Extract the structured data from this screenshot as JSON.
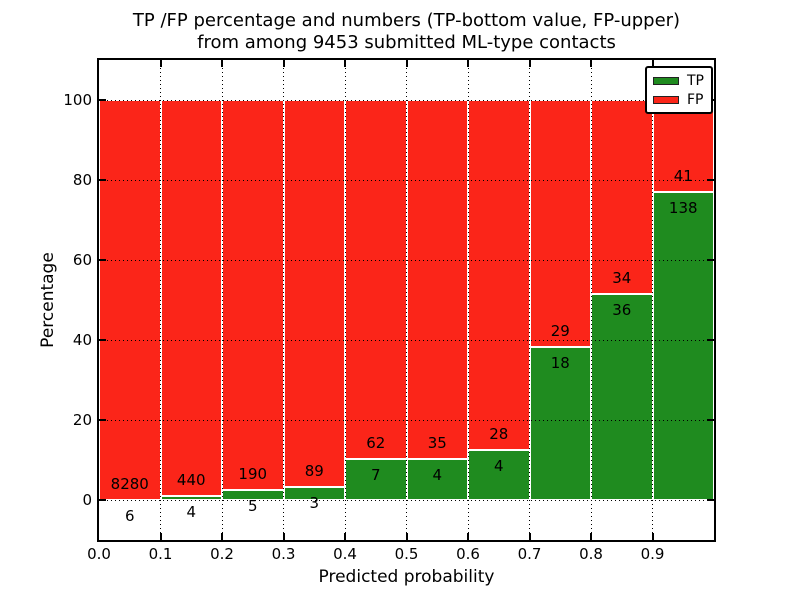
{
  "title": {
    "line1": "TP /FP percentage and numbers (TP-bottom value, FP-upper)",
    "line2": "from among 9453 submitted ML-type contacts"
  },
  "axes": {
    "xlabel": "Predicted probability",
    "ylabel": "Percentage",
    "x_tick_labels": [
      "0.0",
      "0.1",
      "0.2",
      "0.3",
      "0.4",
      "0.5",
      "0.6",
      "0.7",
      "0.8",
      "0.9"
    ],
    "y_tick_values": [
      0,
      20,
      40,
      60,
      80,
      100
    ],
    "xlim": [
      0.0,
      1.0
    ],
    "ylim": [
      -10,
      110
    ],
    "grid": "dotted"
  },
  "legend": {
    "position": "upper right",
    "items": [
      {
        "label": "TP",
        "color": "#1f8b1f"
      },
      {
        "label": "FP",
        "color": "#fb2519"
      }
    ]
  },
  "colors": {
    "tp": "#1f8b1f",
    "fp": "#fb2519",
    "bar_edge": "#ffffff",
    "grid": "#000000"
  },
  "chart_data": {
    "type": "bar",
    "stacked": true,
    "title": "TP /FP percentage and numbers (TP-bottom value, FP-upper) from among 9453 submitted ML-type contacts",
    "xlabel": "Predicted probability",
    "ylabel": "Percentage",
    "bin_width": 0.1,
    "bin_starts": [
      0.0,
      0.1,
      0.2,
      0.3,
      0.4,
      0.5,
      0.6,
      0.7,
      0.8,
      0.9
    ],
    "categories": [
      "0.0-0.1",
      "0.1-0.2",
      "0.2-0.3",
      "0.3-0.4",
      "0.4-0.5",
      "0.5-0.6",
      "0.6-0.7",
      "0.7-0.8",
      "0.8-0.9",
      "0.9-1.0"
    ],
    "series": [
      {
        "name": "TP",
        "color": "#1f8b1f",
        "counts": [
          6,
          4,
          5,
          3,
          7,
          4,
          4,
          18,
          36,
          138
        ],
        "pct": [
          0.07,
          0.9,
          2.56,
          3.26,
          10.14,
          10.26,
          12.5,
          38.3,
          51.43,
          77.09
        ]
      },
      {
        "name": "FP",
        "color": "#fb2519",
        "counts": [
          8280,
          440,
          190,
          89,
          62,
          35,
          28,
          29,
          34,
          41
        ],
        "pct": [
          99.93,
          99.1,
          97.44,
          96.74,
          89.86,
          89.74,
          87.5,
          61.7,
          48.57,
          22.91
        ]
      }
    ],
    "total_contacts": 9453,
    "ylim": [
      -10,
      110
    ],
    "note": "TP count labeled below segment boundary, FP count labeled above it"
  }
}
